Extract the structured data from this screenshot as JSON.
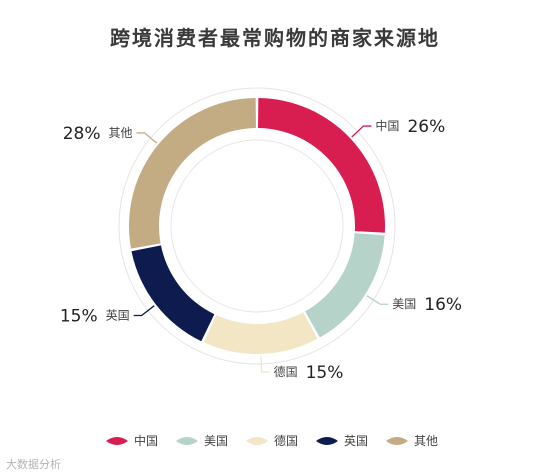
{
  "chart_data": {
    "type": "pie",
    "title": "跨境消费者最常购物的商家来源地",
    "categories": [
      "中国",
      "美国",
      "德国",
      "英国",
      "其他"
    ],
    "values": [
      26,
      16,
      15,
      15,
      28
    ],
    "value_labels": [
      "26%",
      "16%",
      "15%",
      "15%",
      "28%"
    ],
    "colors": [
      "#D81E50",
      "#B5D3C9",
      "#F2E6C4",
      "#0D1B4F",
      "#C3AC84"
    ],
    "legend_position": "bottom",
    "donut": true
  },
  "watermark": "大数据分析"
}
